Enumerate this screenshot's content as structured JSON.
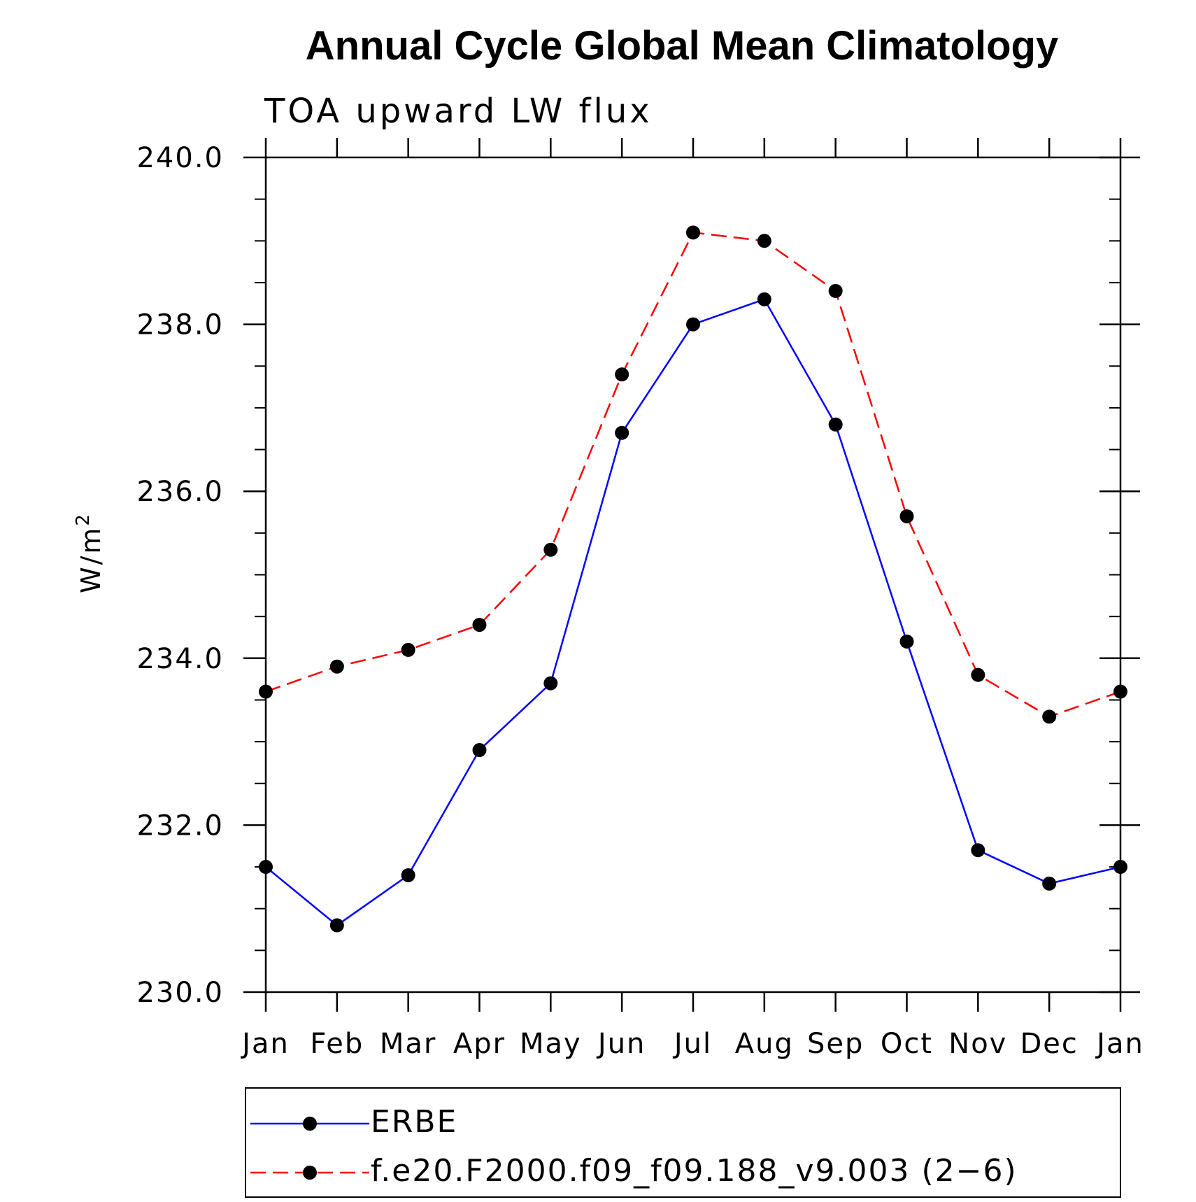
{
  "chart_data": {
    "type": "line",
    "title": "Annual Cycle Global Mean Climatology",
    "subtitle": "TOA upward LW flux",
    "ylabel": "W/m",
    "ylabel_sup": "2",
    "categories": [
      "Jan",
      "Feb",
      "Mar",
      "Apr",
      "May",
      "Jun",
      "Jul",
      "Aug",
      "Sep",
      "Oct",
      "Nov",
      "Dec",
      "Jan"
    ],
    "ylim": [
      230,
      240
    ],
    "yticks": [
      "230.0",
      "232.0",
      "234.0",
      "236.0",
      "238.0",
      "240.0"
    ],
    "y_minor_step": 0.5,
    "grid": false,
    "legend_position": "bottom",
    "series": [
      {
        "name": "ERBE",
        "color": "#0000ff",
        "line_style": "solid",
        "marker": "filled-circle",
        "values": [
          231.5,
          230.8,
          231.4,
          232.9,
          233.7,
          236.7,
          238.0,
          238.3,
          236.8,
          234.2,
          231.7,
          231.3,
          231.5
        ]
      },
      {
        "name": "f.e20.F2000.f09_f09.188_v9.003 (2−6)",
        "color": "#ff0000",
        "line_style": "dashed",
        "marker": "filled-circle",
        "values": [
          233.6,
          233.9,
          234.1,
          234.4,
          235.3,
          237.4,
          239.1,
          239.0,
          238.4,
          235.7,
          233.8,
          233.3,
          233.6
        ]
      }
    ]
  }
}
